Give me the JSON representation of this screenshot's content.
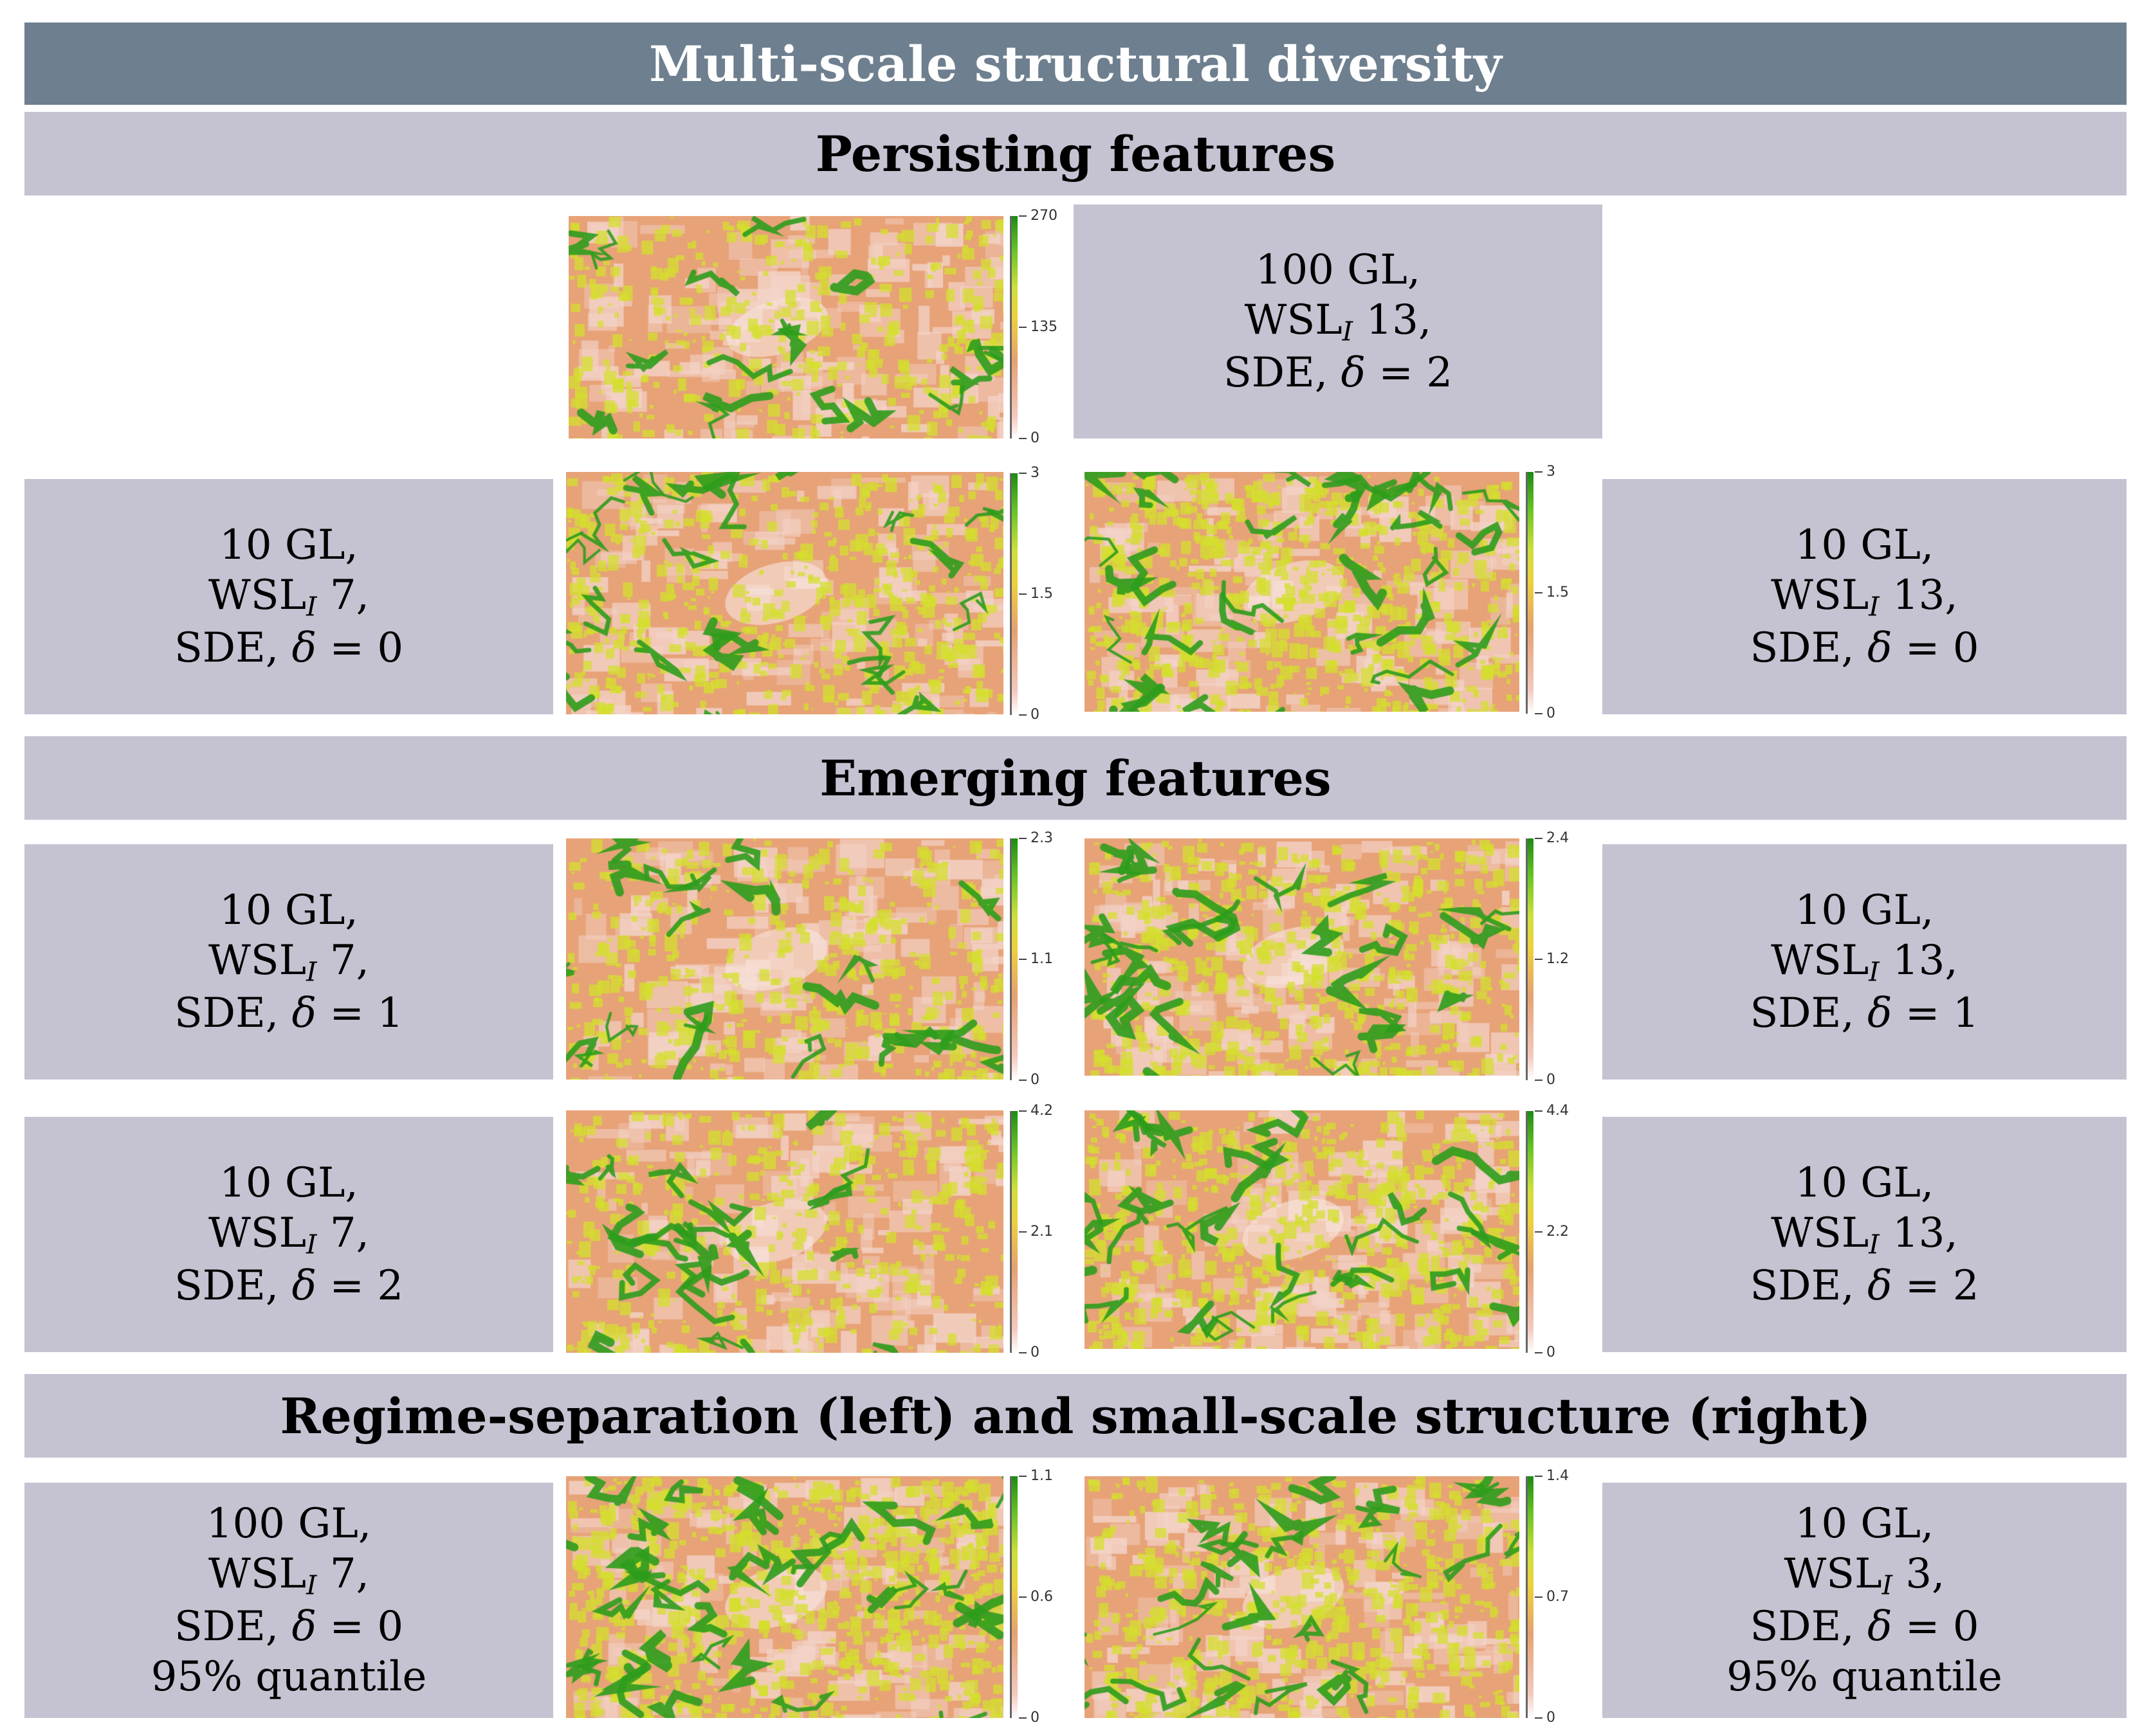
{
  "title": "Multi-scale structural diversity",
  "sections": {
    "persisting": "Persisting features",
    "emerging": "Emerging features",
    "regime": "Regime-separation (left) and small-scale structure (right)"
  },
  "labels": {
    "top": {
      "l1": "100 GL,",
      "l2a": "WSL",
      "l2sub": "I",
      "l2b": " 13,",
      "l3a": "SDE, ",
      "l3d": "δ",
      "l3b": " = 2"
    },
    "p_left": {
      "l1": "10 GL,",
      "l2a": "WSL",
      "l2sub": "I",
      "l2b": " 7,",
      "l3a": "SDE, ",
      "l3d": "δ",
      "l3b": " = 0"
    },
    "p_right": {
      "l1": "10 GL,",
      "l2a": "WSL",
      "l2sub": "I",
      "l2b": " 13,",
      "l3a": "SDE, ",
      "l3d": "δ",
      "l3b": " = 0"
    },
    "e1_left": {
      "l1": "10 GL,",
      "l2a": "WSL",
      "l2sub": "I",
      "l2b": " 7,",
      "l3a": "SDE, ",
      "l3d": "δ",
      "l3b": " = 1"
    },
    "e1_right": {
      "l1": "10 GL,",
      "l2a": "WSL",
      "l2sub": "I",
      "l2b": " 13,",
      "l3a": "SDE, ",
      "l3d": "δ",
      "l3b": " = 1"
    },
    "e2_left": {
      "l1": "10 GL,",
      "l2a": "WSL",
      "l2sub": "I",
      "l2b": " 7,",
      "l3a": "SDE, ",
      "l3d": "δ",
      "l3b": " = 2"
    },
    "e2_right": {
      "l1": "10 GL,",
      "l2a": "WSL",
      "l2sub": "I",
      "l2b": " 13,",
      "l3a": "SDE, ",
      "l3d": "δ",
      "l3b": " = 2"
    },
    "r_left": {
      "l1": "100 GL,",
      "l2a": "WSL",
      "l2sub": "I",
      "l2b": " 7,",
      "l3a": "SDE, ",
      "l3d": "δ",
      "l3b": " = 0",
      "l4": "95% quantile"
    },
    "r_right": {
      "l1": "10 GL,",
      "l2a": "WSL",
      "l2sub": "I",
      "l2b": " 3,",
      "l3a": "SDE, ",
      "l3d": "δ",
      "l3b": " = 0",
      "l4": "95% quantile"
    }
  },
  "legends": {
    "m0": {
      "max": "270",
      "mid": "135",
      "min": "0",
      "green_density": 0.22
    },
    "m1": {
      "max": "3",
      "mid": "1.5",
      "min": "0",
      "green_density": 0.38
    },
    "m2": {
      "max": "3",
      "mid": "1.5",
      "min": "0",
      "green_density": 0.55
    },
    "m3": {
      "max": "2.3",
      "mid": "1.1",
      "min": "0",
      "green_density": 0.3
    },
    "m4": {
      "max": "2.4",
      "mid": "1.2",
      "min": "0",
      "green_density": 0.45
    },
    "m5": {
      "max": "4.2",
      "mid": "2.1",
      "min": "0",
      "green_density": 0.28
    },
    "m6": {
      "max": "4.4",
      "mid": "2.2",
      "min": "0",
      "green_density": 0.45
    },
    "m7": {
      "max": "1.1",
      "mid": "0.6",
      "min": "0",
      "green_density": 0.62
    },
    "m8": {
      "max": "1.4",
      "mid": "0.7",
      "min": "0",
      "green_density": 0.4
    }
  },
  "colors": {
    "title_bg": "#6e7f8f",
    "section_bg": "#c5c3d2",
    "map_base": "#e7a278",
    "map_light": "#f3d3c8",
    "map_yellow": "#d4df2e",
    "map_green": "#2e9c1c"
  }
}
